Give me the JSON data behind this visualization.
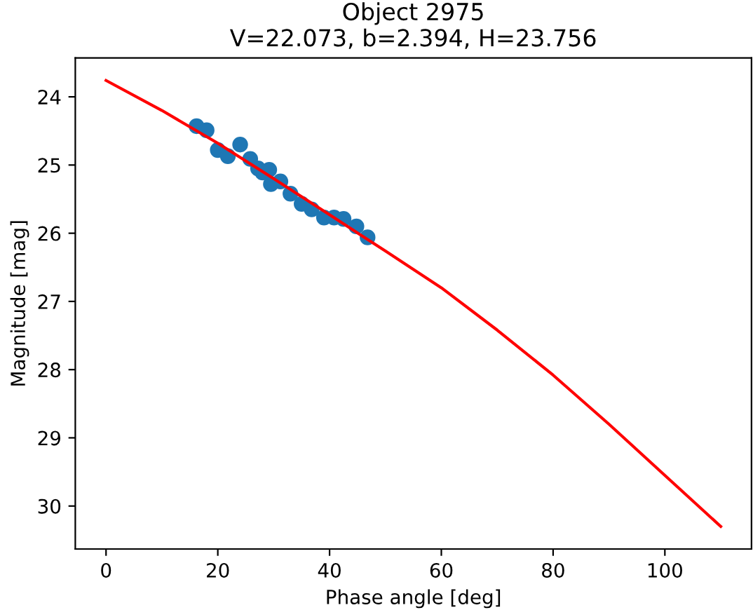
{
  "chart_data": {
    "type": "scatter",
    "title": "Object 2975\nV=22.073, b=2.394, H=23.756",
    "xlabel": "Phase angle [deg]",
    "ylabel": "Magnitude [mag]",
    "xlim": [
      -5.5,
      115.5
    ],
    "ylim": [
      30.63,
      23.43
    ],
    "xticks": [
      0,
      20,
      40,
      60,
      80,
      100
    ],
    "yticks": [
      24,
      25,
      26,
      27,
      28,
      29,
      30
    ],
    "grid": false,
    "legend": false,
    "series": [
      {
        "color": "#1f77b4",
        "marker": "circle",
        "x": [
          16.2,
          18,
          20,
          21.8,
          24,
          25.8,
          27.2,
          28,
          29.2,
          29.5,
          31.2,
          33,
          35,
          36.8,
          39,
          40.8,
          42.5,
          44.8,
          46.8
        ],
        "values": [
          24.43,
          24.49,
          24.78,
          24.87,
          24.7,
          24.91,
          25.05,
          25.11,
          25.07,
          25.28,
          25.24,
          25.42,
          25.57,
          25.65,
          25.77,
          25.77,
          25.79,
          25.9,
          26.06
        ]
      },
      {
        "type": "line",
        "color": "#ff0000",
        "marker": "none",
        "line_style": "solid",
        "x": [
          0,
          10,
          20,
          30,
          40,
          50,
          60,
          70,
          80,
          90,
          100,
          110
        ],
        "values": [
          23.76,
          24.2,
          24.68,
          25.2,
          25.73,
          26.26,
          26.8,
          27.42,
          28.08,
          28.8,
          29.55,
          30.3
        ]
      }
    ]
  }
}
